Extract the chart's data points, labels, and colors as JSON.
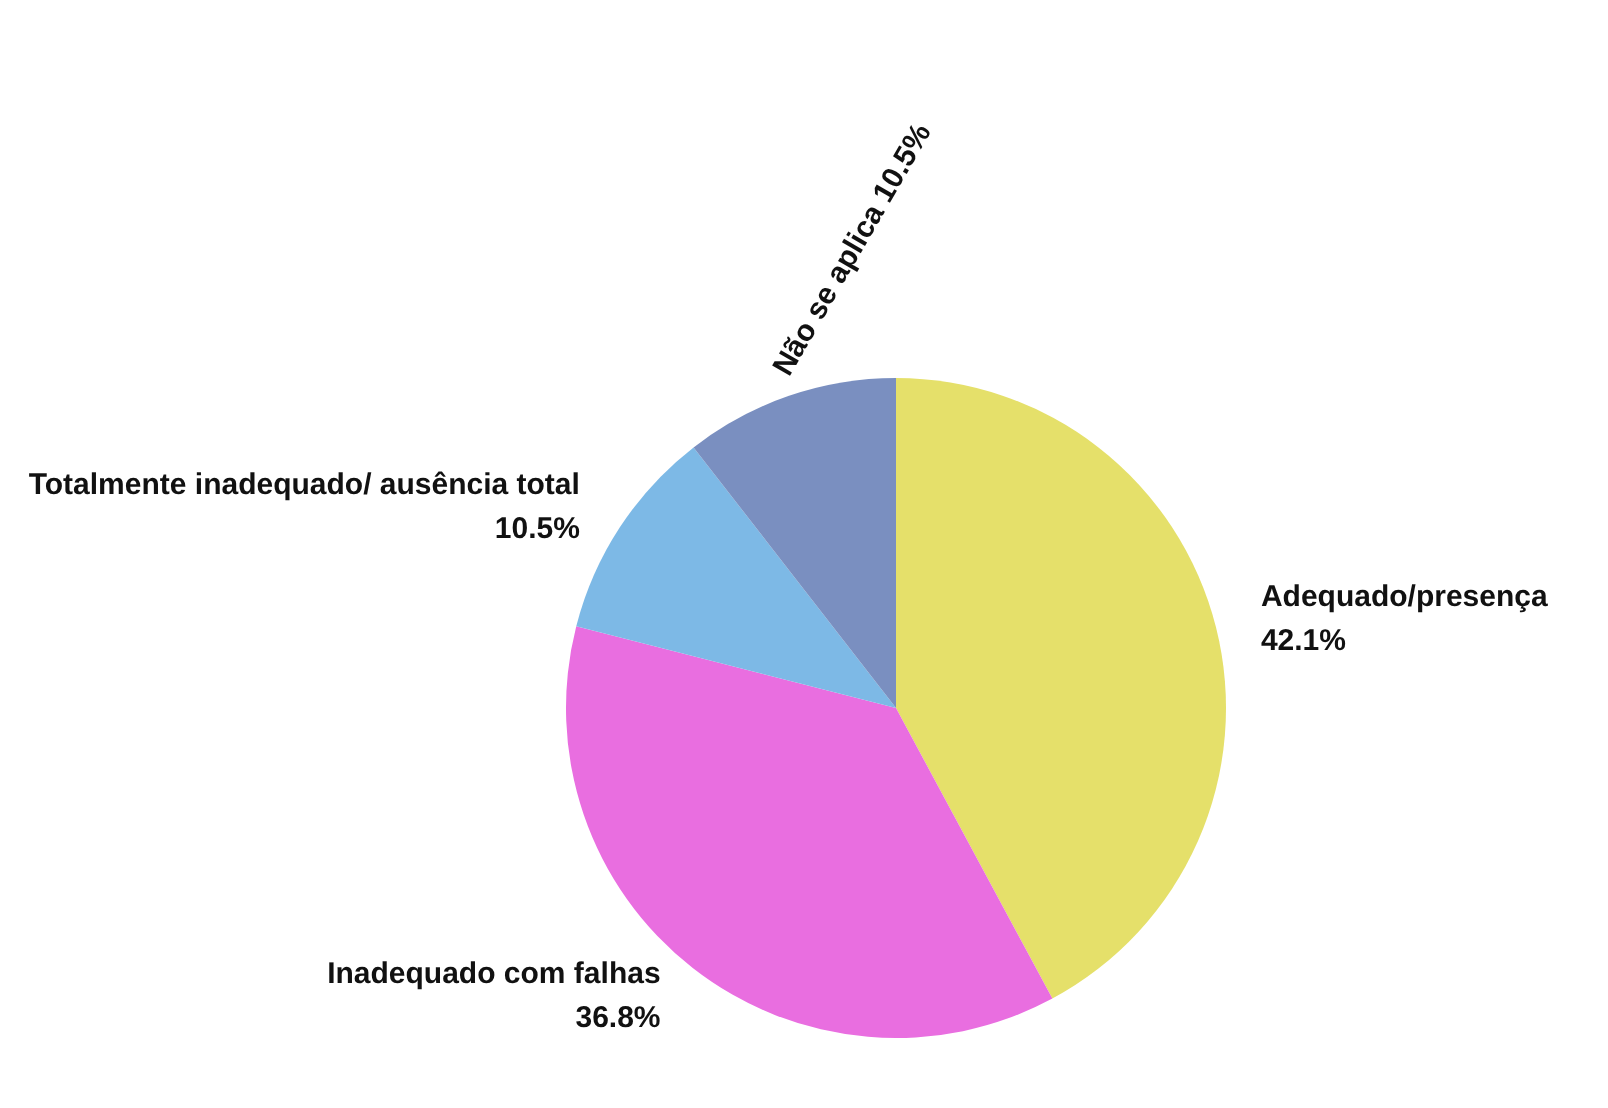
{
  "chart_data": {
    "type": "pie",
    "categories": [
      "Adequado/presença",
      "Inadequado com falhas",
      "Totalmente inadequado/ ausência total",
      "Não se aplica"
    ],
    "values": [
      42.1,
      36.8,
      10.5,
      10.5
    ],
    "colors": [
      "#e5e06a",
      "#e96ee0",
      "#7db9e6",
      "#7a8fc0"
    ],
    "value_labels": [
      "42.1%",
      "36.8%",
      "10.5%",
      "10.5%"
    ],
    "legend": false
  }
}
